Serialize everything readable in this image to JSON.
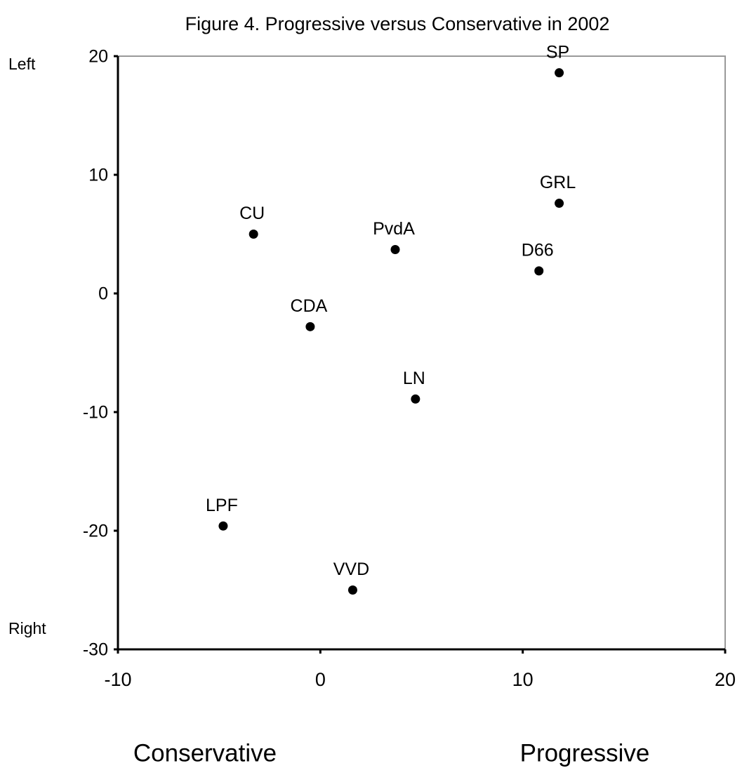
{
  "chart_data": {
    "type": "scatter",
    "title": "Figure 4. Progressive versus Conservative in 2002",
    "labels": [
      "SP",
      "GRL",
      "D66",
      "PvdA",
      "CU",
      "CDA",
      "LN",
      "LPF",
      "VVD"
    ],
    "x": [
      11.8,
      11.8,
      10.8,
      3.7,
      -3.3,
      -0.5,
      4.7,
      -4.8,
      1.6
    ],
    "values": [
      18.6,
      7.6,
      1.9,
      3.7,
      5.0,
      -2.8,
      -8.9,
      -19.6,
      -25.0
    ],
    "color": "#000000",
    "xlim": [
      -10,
      20
    ],
    "xticks": [
      -10,
      0,
      10,
      20
    ],
    "ylim": [
      -30,
      20
    ],
    "yticks": [
      -30,
      -20,
      -10,
      0,
      10,
      20
    ],
    "y_label_top": "Left",
    "y_label_bottom": "Right",
    "x_label_left": "Conservative",
    "x_label_right": "Progressive"
  }
}
